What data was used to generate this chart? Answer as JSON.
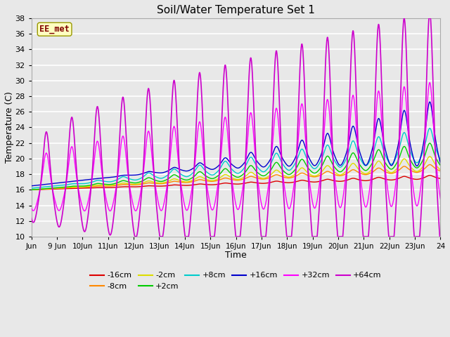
{
  "title": "Soil/Water Temperature Set 1",
  "xlabel": "Time",
  "ylabel": "Temperature (C)",
  "ylim": [
    10,
    38
  ],
  "yticks": [
    10,
    12,
    14,
    16,
    18,
    20,
    22,
    24,
    26,
    28,
    30,
    32,
    34,
    36,
    38
  ],
  "fig_bg": "#e8e8e8",
  "plot_bg": "#e8e8e8",
  "grid_color": "#ffffff",
  "watermark_text": "EE_met",
  "watermark_bg": "#ffffc0",
  "watermark_fg": "#800000",
  "series_colors": {
    "-16cm": "#dd0000",
    "-8cm": "#ff8800",
    "-2cm": "#dddd00",
    "+2cm": "#00cc00",
    "+8cm": "#00cccc",
    "+16cm": "#0000cc",
    "+32cm": "#ff00ff",
    "+64cm": "#cc00cc"
  },
  "x_start_day": 8.0,
  "x_end_day": 24.0,
  "xtick_labels": [
    "Jun",
    "9 Jun",
    "10Jun",
    "11Jun",
    "12Jun",
    "13Jun",
    "14Jun",
    "15Jun",
    "16Jun",
    "17Jun",
    "18Jun",
    "19Jun",
    "20Jun",
    "21Jun",
    "22Jun",
    "23Jun",
    "24"
  ],
  "xtick_positions": [
    8,
    9,
    10,
    11,
    12,
    13,
    14,
    15,
    16,
    17,
    18,
    19,
    20,
    21,
    22,
    23,
    24
  ]
}
